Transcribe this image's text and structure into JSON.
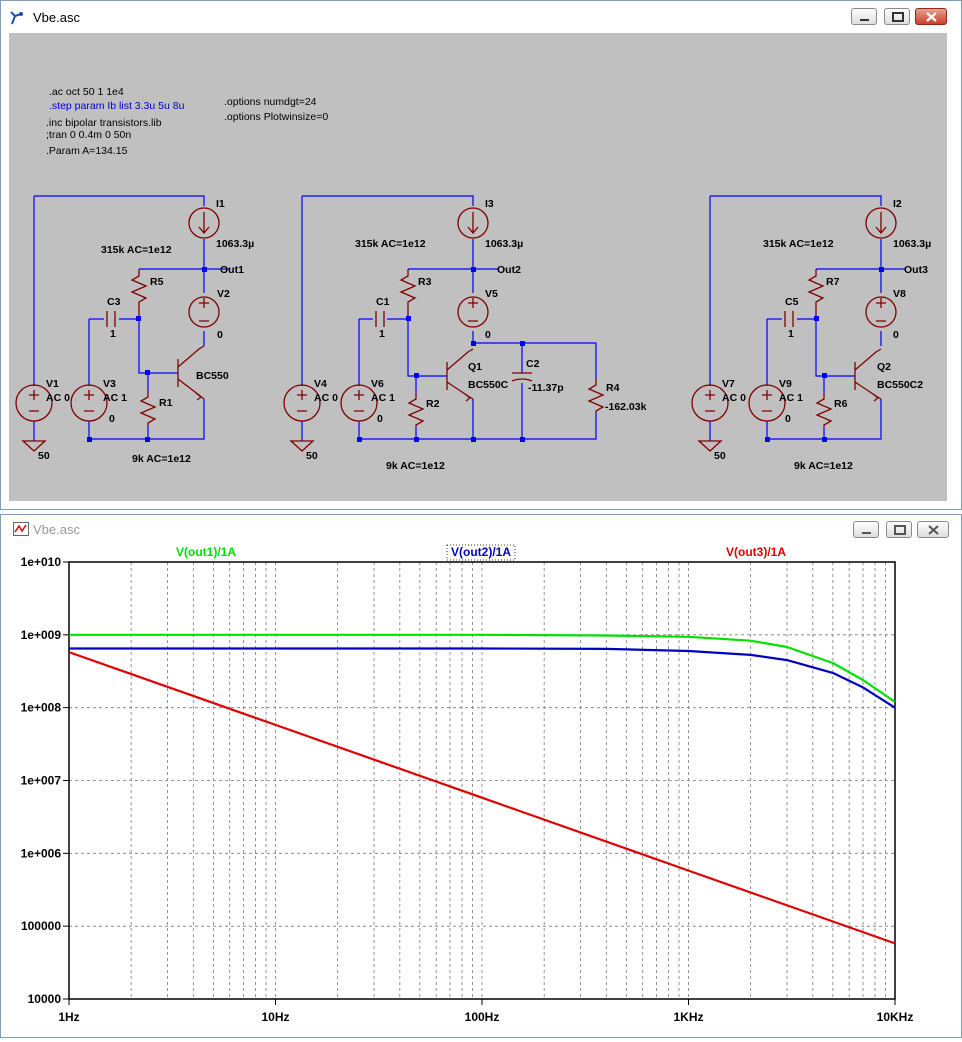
{
  "schematic_window": {
    "title": "Vbe.asc",
    "directives": {
      "ac": ".ac oct 50 1 1e4",
      "step": ".step param Ib list 3.3u 5u 8u",
      "inc": ".inc bipolar transistors.lib",
      "tran": ";tran 0 0.4m 0 50n",
      "param": ".Param A=134.15",
      "numdgt": ".options numdgt=24",
      "plotwinsize": ".options Plotwinsize=0"
    },
    "circuit1": {
      "i_label": "I1",
      "i_value": "1063.3µ",
      "r_top_label": "R5",
      "r_top_value": "315k AC=1e12",
      "cap_label": "C3",
      "cap_value": "1",
      "out_label": "Out1",
      "v2_label": "V2",
      "v2_value": "0",
      "q_model": "BC550",
      "v1_label": "V1",
      "v1_value": "AC 0",
      "v3_label": "V3",
      "v3_value": "AC 1",
      "v3_dc": "0",
      "r_bot_label": "R1",
      "r_bot_value": "9k AC=1e12",
      "gnd_value": "50"
    },
    "circuit2": {
      "i_label": "I3",
      "i_value": "1063.3µ",
      "r_top_label": "R3",
      "r_top_value": "315k AC=1e12",
      "cap_label": "C1",
      "cap_value": "1",
      "out_label": "Out2",
      "v5_label": "V5",
      "v5_value": "0",
      "q_label": "Q1",
      "q_model": "BC550C",
      "c2_label": "C2",
      "c2_value": "-11.37p",
      "r4_label": "R4",
      "r4_value": "-162.03k",
      "v4_label": "V4",
      "v4_value": "AC 0",
      "v6_label": "V6",
      "v6_value": "AC 1",
      "v6_dc": "0",
      "r_bot_label": "R2",
      "r_bot_value": "9k AC=1e12",
      "gnd_value": "50"
    },
    "circuit3": {
      "i_label": "I2",
      "i_value": "1063.3µ",
      "r_top_label": "R7",
      "r_top_value": "315k AC=1e12",
      "cap_label": "C5",
      "cap_value": "1",
      "out_label": "Out3",
      "v8_label": "V8",
      "v8_value": "0",
      "q_label": "Q2",
      "q_model": "BC550C2",
      "v7_label": "V7",
      "v7_value": "AC 0",
      "v9_label": "V9",
      "v9_value": "AC 1",
      "v9_dc": "0",
      "r_bot_label": "R6",
      "r_bot_value": "9k AC=1e12",
      "gnd_value": "50"
    }
  },
  "plot_window": {
    "title": "Vbe.asc"
  },
  "colors": {
    "wire": "#0000ff",
    "component": "#800000",
    "label": "#000000",
    "directive_blue": "#0000c8",
    "series_green": "#00e000",
    "series_blue": "#0000c0",
    "series_red": "#e00000"
  },
  "chart_data": {
    "type": "line",
    "x_scale": "log",
    "y_scale": "log",
    "xlim": [
      1,
      10000
    ],
    "ylim": [
      10000,
      10000000000
    ],
    "grid": true,
    "x_ticks": [
      "1Hz",
      "10Hz",
      "100Hz",
      "1KHz",
      "10KHz"
    ],
    "y_ticks": [
      "1e+010",
      "1e+009",
      "1e+008",
      "1e+007",
      "1e+006",
      "100000",
      "10000"
    ],
    "series": [
      {
        "name": "V(out1)/1A",
        "color": "#00e000",
        "x": [
          1,
          10,
          100,
          400,
          1000,
          2000,
          3000,
          5000,
          7000,
          10000
        ],
        "y": [
          1000000000.0,
          1000000000.0,
          1000000000.0,
          980000000.0,
          940000000.0,
          830000000.0,
          680000000.0,
          410000000.0,
          240000000.0,
          120000000.0
        ]
      },
      {
        "name": "V(out2)/1A",
        "color": "#0000c0",
        "x": [
          1,
          10,
          100,
          400,
          1000,
          2000,
          3000,
          5000,
          7000,
          10000
        ],
        "y": [
          650000000.0,
          650000000.0,
          650000000.0,
          640000000.0,
          600000000.0,
          530000000.0,
          450000000.0,
          300000000.0,
          190000000.0,
          100000000.0
        ]
      },
      {
        "name": "V(out3)/1A",
        "color": "#e00000",
        "x": [
          1,
          10,
          100,
          1000,
          10000
        ],
        "y": [
          580000000.0,
          58000000.0,
          5800000.0,
          580000.0,
          58000.0
        ]
      }
    ]
  }
}
